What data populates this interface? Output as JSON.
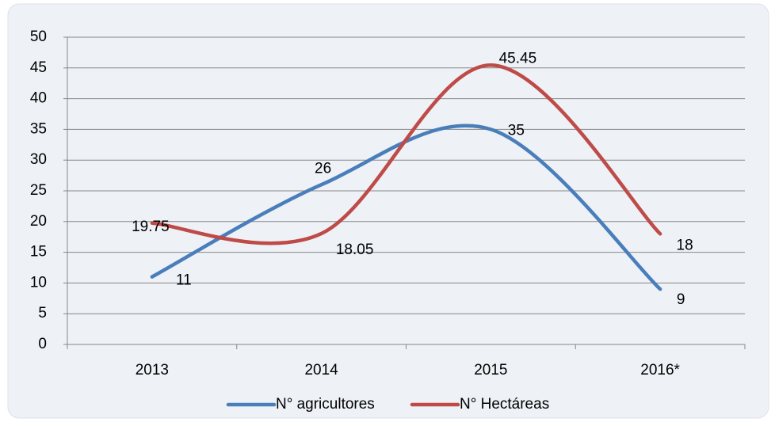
{
  "chart_data": {
    "type": "line",
    "categories": [
      "2013",
      "2014",
      "2015",
      "2016*"
    ],
    "series": [
      {
        "name": "N° agricultores",
        "color": "#4a7ebb",
        "values": [
          11,
          26,
          35,
          9
        ]
      },
      {
        "name": "N° Hectáreas",
        "color": "#be4b48",
        "values": [
          19.75,
          18.05,
          45.45,
          18
        ]
      }
    ],
    "ylim": [
      0,
      50
    ],
    "yticks": [
      0,
      5,
      10,
      15,
      20,
      25,
      30,
      35,
      40,
      45,
      50
    ],
    "grid": true,
    "smooth": true,
    "legend": "bottom"
  }
}
